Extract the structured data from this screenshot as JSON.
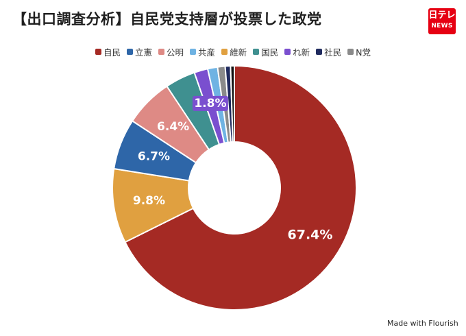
{
  "title": "【出口調査分析】自民党支持層が投票した政党",
  "logo": {
    "top": "日テレ",
    "bottom": "NEWS"
  },
  "footer": "Made with Flourish",
  "chart_data": {
    "type": "pie",
    "donut": true,
    "categories": [
      "自民",
      "立憲",
      "公明",
      "共産",
      "維新",
      "国民",
      "れ新",
      "社民",
      "N党"
    ],
    "segments": [
      {
        "name": "自民",
        "value": 67.4,
        "color": "#a52a24",
        "label": "67.4%"
      },
      {
        "name": "維新",
        "value": 9.8,
        "color": "#e0a040",
        "label": "9.8%"
      },
      {
        "name": "立憲",
        "value": 6.7,
        "color": "#2e66a8",
        "label": "6.7%"
      },
      {
        "name": "公明",
        "value": 6.4,
        "color": "#de8a85",
        "label": "6.4%"
      },
      {
        "name": "国民",
        "value": 4.0,
        "color": "#3f9090",
        "label": ""
      },
      {
        "name": "れ新",
        "value": 1.8,
        "color": "#7a4fcf",
        "label": "1.8%"
      },
      {
        "name": "共産",
        "value": 1.3,
        "color": "#6fb3e3",
        "label": ""
      },
      {
        "name": "N党",
        "value": 1.0,
        "color": "#8a8a8a",
        "label": ""
      },
      {
        "name": "社民",
        "value": 0.7,
        "color": "#1f2a5e",
        "label": ""
      },
      {
        "name": "",
        "value": 0.5,
        "color": "#111111",
        "label": ""
      }
    ],
    "legend": [
      {
        "name": "自民",
        "color": "#a52a24"
      },
      {
        "name": "立憲",
        "color": "#2e66a8"
      },
      {
        "name": "公明",
        "color": "#de8a85"
      },
      {
        "name": "共産",
        "color": "#6fb3e3"
      },
      {
        "name": "維新",
        "color": "#e0a040"
      },
      {
        "name": "国民",
        "color": "#3f9090"
      },
      {
        "name": "れ新",
        "color": "#7a4fcf"
      },
      {
        "name": "社民",
        "color": "#1f2a5e"
      },
      {
        "name": "N党",
        "color": "#8a8a8a"
      }
    ],
    "legend_position": "top",
    "label_unit": "%"
  }
}
